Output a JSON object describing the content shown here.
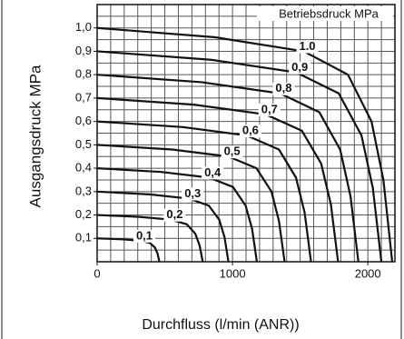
{
  "chart_data": {
    "type": "line",
    "xlabel": "Durchfluss (l/min (ANR))",
    "ylabel": "Ausgangsdruck MPa",
    "annotation": "Betriebsdruck MPa",
    "xlim": [
      0,
      2200
    ],
    "ylim": [
      0,
      1.1
    ],
    "xticks": [
      0,
      1000,
      2000
    ],
    "yticks": [
      {
        "value": 0.1,
        "label": "0,1"
      },
      {
        "value": 0.2,
        "label": "0,2"
      },
      {
        "value": 0.3,
        "label": "0,3"
      },
      {
        "value": 0.4,
        "label": "0,4"
      },
      {
        "value": 0.5,
        "label": "0,5"
      },
      {
        "value": 0.6,
        "label": "0,6"
      },
      {
        "value": 0.7,
        "label": "0,7"
      },
      {
        "value": 0.8,
        "label": "0,8"
      },
      {
        "value": 0.9,
        "label": "0,9"
      },
      {
        "value": 1.0,
        "label": "1,0"
      }
    ],
    "xminorticks": [
      100,
      200,
      300,
      400,
      500,
      600,
      700,
      800,
      900,
      1000,
      1100,
      1200,
      1300,
      1400,
      1500,
      1600,
      1700,
      1800,
      1900,
      2000,
      2100
    ],
    "yminorticks": [
      0.05,
      0.1,
      0.15,
      0.2,
      0.25,
      0.3,
      0.35,
      0.4,
      0.45,
      0.5,
      0.55,
      0.6,
      0.65,
      0.7,
      0.75,
      0.8,
      0.85,
      0.9,
      0.95,
      1.0,
      1.05
    ],
    "grid": true,
    "color": "#111111",
    "series": [
      {
        "name": "0,1",
        "x": [
          0,
          184,
          322,
          391,
          428,
          446,
          460
        ],
        "values": [
          0.1,
          0.096,
          0.09,
          0.08,
          0.06,
          0.035,
          0
        ]
      },
      {
        "name": "0,2",
        "x": [
          0,
          312,
          546,
          663,
          725,
          757,
          780
        ],
        "values": [
          0.2,
          0.192,
          0.18,
          0.16,
          0.12,
          0.07,
          0
        ]
      },
      {
        "name": "0,3",
        "x": [
          0,
          388,
          679,
          825,
          902,
          941,
          970
        ],
        "values": [
          0.3,
          0.288,
          0.27,
          0.24,
          0.18,
          0.105,
          0
        ]
      },
      {
        "name": "0,4",
        "x": [
          0,
          472,
          826,
          1003,
          1097,
          1145,
          1180
        ],
        "values": [
          0.4,
          0.384,
          0.36,
          0.32,
          0.24,
          0.14,
          0
        ]
      },
      {
        "name": "0,5",
        "x": [
          0,
          554,
          970,
          1177,
          1288,
          1343,
          1385
        ],
        "values": [
          0.5,
          0.48,
          0.45,
          0.4,
          0.3,
          0.175,
          0
        ]
      },
      {
        "name": "0,6",
        "x": [
          0,
          632,
          1106,
          1343,
          1469,
          1533,
          1580
        ],
        "values": [
          0.6,
          0.576,
          0.54,
          0.48,
          0.36,
          0.21,
          0
        ]
      },
      {
        "name": "0,7",
        "x": [
          0,
          712,
          1246,
          1513,
          1655,
          1727,
          1780
        ],
        "values": [
          0.7,
          0.672,
          0.63,
          0.56,
          0.42,
          0.245,
          0
        ]
      },
      {
        "name": "0,8",
        "x": [
          0,
          772,
          1351,
          1641,
          1795,
          1872,
          1930
        ],
        "values": [
          0.8,
          0.768,
          0.72,
          0.64,
          0.48,
          0.28,
          0
        ]
      },
      {
        "name": "0,9",
        "x": [
          0,
          840,
          1470,
          1785,
          1953,
          2037,
          2100
        ],
        "values": [
          0.9,
          0.864,
          0.81,
          0.72,
          0.54,
          0.315,
          0
        ]
      },
      {
        "name": "1.0",
        "x": [
          0,
          872,
          1526,
          1853,
          2027,
          2115,
          2180
        ],
        "values": [
          1,
          0.96,
          0.9,
          0.8,
          0.6,
          0.35,
          0
        ]
      }
    ]
  }
}
